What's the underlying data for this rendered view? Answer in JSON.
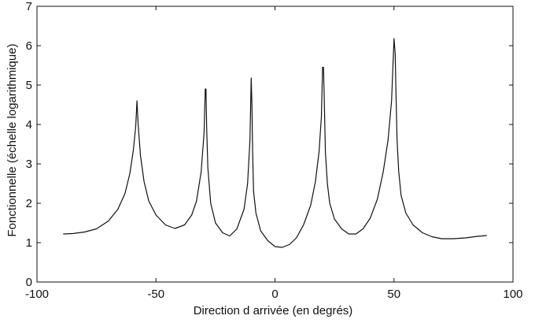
{
  "chart_data": {
    "type": "line",
    "title": "",
    "xlabel": "Direction d arrivée (en degrés)",
    "ylabel": "Fonctionnelle   (échelle logarithmique)",
    "xlim": [
      -100,
      100
    ],
    "ylim": [
      0,
      7
    ],
    "xticks": [
      -100,
      -50,
      0,
      50,
      100
    ],
    "yticks": [
      0,
      1,
      2,
      3,
      4,
      5,
      6,
      7
    ],
    "xtick_labels": [
      "-100",
      "-50",
      "0",
      "50",
      "100"
    ],
    "ytick_labels": [
      "0",
      "1",
      "2",
      "3",
      "4",
      "5",
      "6",
      "7"
    ],
    "grid": false,
    "series": [
      {
        "color": "#111111",
        "x": [
          -89,
          -85,
          -80,
          -75,
          -70,
          -66,
          -63,
          -61,
          -59.5,
          -58.5,
          -58,
          -57.5,
          -56.5,
          -55,
          -53,
          -50,
          -46,
          -42,
          -38,
          -35,
          -33,
          -31,
          -29.8,
          -29.3,
          -29,
          -28.7,
          -28.2,
          -27,
          -25,
          -22,
          -19,
          -16,
          -13,
          -11.5,
          -10.5,
          -10,
          -9.7,
          -9.4,
          -9,
          -8,
          -6,
          -3,
          0,
          3,
          6,
          9,
          12,
          15,
          17,
          18.5,
          19.5,
          20,
          20.4,
          20.8,
          21.2,
          22,
          23,
          25,
          28,
          31,
          34,
          37,
          40,
          43,
          45.5,
          47.5,
          49,
          50,
          50.5,
          50.9,
          51.3,
          52,
          53,
          55,
          58,
          62,
          66,
          70,
          75,
          80,
          85,
          89
        ],
        "y": [
          1.22,
          1.23,
          1.27,
          1.35,
          1.55,
          1.85,
          2.25,
          2.75,
          3.35,
          3.95,
          4.6,
          4.0,
          3.2,
          2.55,
          2.05,
          1.7,
          1.45,
          1.36,
          1.45,
          1.7,
          2.05,
          2.8,
          3.8,
          4.9,
          4.9,
          3.9,
          2.9,
          2.0,
          1.5,
          1.25,
          1.17,
          1.35,
          1.85,
          2.5,
          3.6,
          5.18,
          4.5,
          3.3,
          2.3,
          1.75,
          1.3,
          1.05,
          0.9,
          0.88,
          0.95,
          1.12,
          1.45,
          1.95,
          2.55,
          3.3,
          4.2,
          5.45,
          5.45,
          4.4,
          3.3,
          2.5,
          2.0,
          1.6,
          1.35,
          1.22,
          1.22,
          1.35,
          1.62,
          2.1,
          2.8,
          3.6,
          4.6,
          6.18,
          5.8,
          4.6,
          3.6,
          2.8,
          2.2,
          1.75,
          1.45,
          1.25,
          1.15,
          1.1,
          1.1,
          1.12,
          1.16,
          1.18
        ]
      }
    ]
  }
}
